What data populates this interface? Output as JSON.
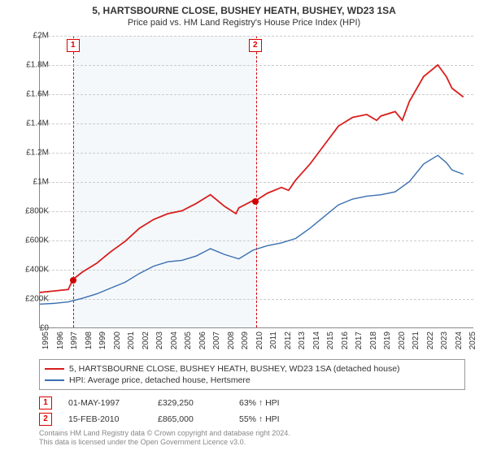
{
  "title": "5, HARTSBOURNE CLOSE, BUSHEY HEATH, BUSHEY, WD23 1SA",
  "subtitle": "Price paid vs. HM Land Registry's House Price Index (HPI)",
  "chart": {
    "type": "line",
    "x_min": 1995,
    "x_max": 2025.5,
    "y_min": 0,
    "y_max": 2000000,
    "y_ticks": [
      0,
      200000,
      400000,
      600000,
      800000,
      1000000,
      1200000,
      1400000,
      1600000,
      1800000,
      2000000
    ],
    "y_tick_labels": [
      "£0",
      "£200K",
      "£400K",
      "£600K",
      "£800K",
      "£1M",
      "£1.2M",
      "£1.4M",
      "£1.6M",
      "£1.8M",
      "£2M"
    ],
    "x_ticks": [
      1995,
      1996,
      1997,
      1998,
      1999,
      2000,
      2001,
      2002,
      2003,
      2004,
      2005,
      2006,
      2007,
      2008,
      2009,
      2010,
      2011,
      2012,
      2013,
      2014,
      2015,
      2016,
      2017,
      2018,
      2019,
      2020,
      2021,
      2022,
      2023,
      2024,
      2025
    ],
    "grid_color": "#cccccc",
    "background_color": "#ffffff",
    "shaded_region": {
      "x_start": 1997.33,
      "x_end": 2010.12,
      "fill": "rgba(70,130,180,0.06)",
      "border": "#d00000"
    },
    "series": [
      {
        "name": "series-address",
        "label": "5, HARTSBOURNE CLOSE, BUSHEY HEATH, BUSHEY, WD23 1SA (detached house)",
        "color": "#d91e1e",
        "line_width": 1.8,
        "points": [
          [
            1995,
            240000
          ],
          [
            1996,
            250000
          ],
          [
            1997,
            260000
          ],
          [
            1997.33,
            329250
          ],
          [
            1998,
            380000
          ],
          [
            1999,
            440000
          ],
          [
            2000,
            520000
          ],
          [
            2001,
            590000
          ],
          [
            2002,
            680000
          ],
          [
            2003,
            740000
          ],
          [
            2004,
            780000
          ],
          [
            2005,
            800000
          ],
          [
            2006,
            850000
          ],
          [
            2007,
            910000
          ],
          [
            2008,
            830000
          ],
          [
            2008.8,
            780000
          ],
          [
            2009,
            820000
          ],
          [
            2010,
            870000
          ],
          [
            2010.12,
            865000
          ],
          [
            2011,
            920000
          ],
          [
            2012,
            960000
          ],
          [
            2012.5,
            940000
          ],
          [
            2013,
            1010000
          ],
          [
            2014,
            1120000
          ],
          [
            2015,
            1250000
          ],
          [
            2016,
            1380000
          ],
          [
            2017,
            1440000
          ],
          [
            2018,
            1460000
          ],
          [
            2018.7,
            1420000
          ],
          [
            2019,
            1450000
          ],
          [
            2020,
            1480000
          ],
          [
            2020.5,
            1420000
          ],
          [
            2021,
            1550000
          ],
          [
            2022,
            1720000
          ],
          [
            2023,
            1800000
          ],
          [
            2023.6,
            1720000
          ],
          [
            2024,
            1640000
          ],
          [
            2024.8,
            1580000
          ]
        ]
      },
      {
        "name": "series-hpi",
        "label": "HPI: Average price, detached house, Hertsmere",
        "color": "#3a6fb0",
        "line_width": 1.4,
        "points": [
          [
            1995,
            160000
          ],
          [
            1996,
            165000
          ],
          [
            1997,
            175000
          ],
          [
            1998,
            200000
          ],
          [
            1999,
            230000
          ],
          [
            2000,
            270000
          ],
          [
            2001,
            310000
          ],
          [
            2002,
            370000
          ],
          [
            2003,
            420000
          ],
          [
            2004,
            450000
          ],
          [
            2005,
            460000
          ],
          [
            2006,
            490000
          ],
          [
            2007,
            540000
          ],
          [
            2008,
            500000
          ],
          [
            2009,
            470000
          ],
          [
            2010,
            530000
          ],
          [
            2011,
            560000
          ],
          [
            2012,
            580000
          ],
          [
            2013,
            610000
          ],
          [
            2014,
            680000
          ],
          [
            2015,
            760000
          ],
          [
            2016,
            840000
          ],
          [
            2017,
            880000
          ],
          [
            2018,
            900000
          ],
          [
            2019,
            910000
          ],
          [
            2020,
            930000
          ],
          [
            2021,
            1000000
          ],
          [
            2022,
            1120000
          ],
          [
            2023,
            1180000
          ],
          [
            2023.6,
            1130000
          ],
          [
            2024,
            1080000
          ],
          [
            2024.8,
            1050000
          ]
        ]
      }
    ],
    "markers": [
      {
        "id": "1",
        "x": 1997.33,
        "y": 329250,
        "label_x": 1997.33,
        "label_y_top": true,
        "color": "#d00000"
      },
      {
        "id": "2",
        "x": 2010.12,
        "y": 865000,
        "label_x": 2010.12,
        "label_y_top": true,
        "color": "#d00000"
      }
    ]
  },
  "legend": {
    "items": [
      {
        "color": "#d91e1e",
        "label": "5, HARTSBOURNE CLOSE, BUSHEY HEATH, BUSHEY, WD23 1SA (detached house)"
      },
      {
        "color": "#3a6fb0",
        "label": "HPI: Average price, detached house, Hertsmere"
      }
    ]
  },
  "sales": [
    {
      "id": "1",
      "date": "01-MAY-1997",
      "price": "£329,250",
      "hpi": "63% ↑ HPI"
    },
    {
      "id": "2",
      "date": "15-FEB-2010",
      "price": "£865,000",
      "hpi": "55% ↑ HPI"
    }
  ],
  "attribution_line1": "Contains HM Land Registry data © Crown copyright and database right 2024.",
  "attribution_line2": "This data is licensed under the Open Government Licence v3.0."
}
